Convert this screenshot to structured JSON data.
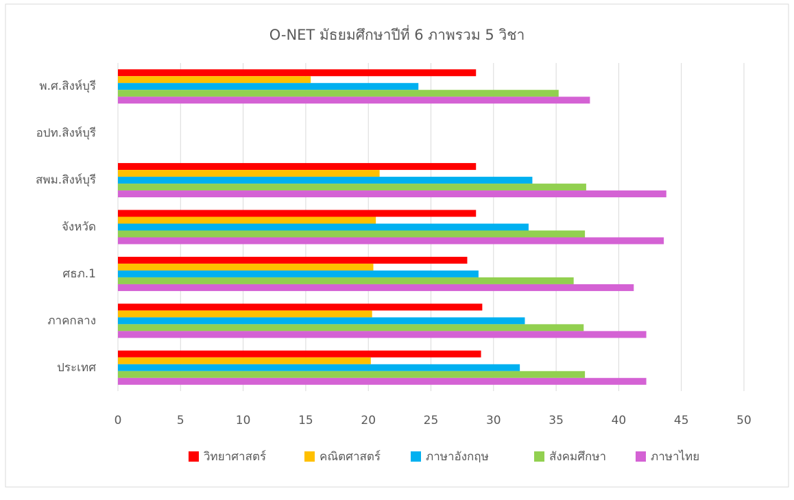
{
  "chart_data": {
    "type": "hbar",
    "title": "O-NET มัธยมศึกษาปีที่ 6 ภาพรวม 5 วิชา",
    "categories": [
      "พ.ศ.สิงห์บุรี",
      "อปท.สิงห์บุรี",
      "สพม.สิงห์บุรี",
      "จังหวัด",
      "ศธภ.1",
      "ภาคกลาง",
      "ประเทศ"
    ],
    "series": [
      {
        "name": "วิทยาศาสตร์",
        "color": "#ff0000",
        "values": [
          28.6,
          null,
          28.6,
          28.6,
          27.9,
          29.1,
          29.0
        ]
      },
      {
        "name": "คณิตศาสตร์",
        "color": "#ffc000",
        "values": [
          15.4,
          null,
          20.9,
          20.6,
          20.4,
          20.3,
          20.2
        ]
      },
      {
        "name": "ภาษาอังกฤษ",
        "color": "#00b0f0",
        "values": [
          24.0,
          null,
          33.1,
          32.8,
          28.8,
          32.5,
          32.1
        ]
      },
      {
        "name": "สังคมศึกษา",
        "color": "#92d050",
        "values": [
          35.2,
          null,
          37.4,
          37.3,
          36.4,
          37.2,
          37.3
        ]
      },
      {
        "name": "ภาษาไทย",
        "color": "#d462d4",
        "values": [
          37.7,
          null,
          43.8,
          43.6,
          41.2,
          42.2,
          42.2
        ]
      }
    ],
    "xlim": [
      0,
      50
    ],
    "xticks": [
      0,
      5,
      10,
      15,
      20,
      25,
      30,
      35,
      40,
      45,
      50
    ],
    "grid": true,
    "legend": "bottom"
  }
}
